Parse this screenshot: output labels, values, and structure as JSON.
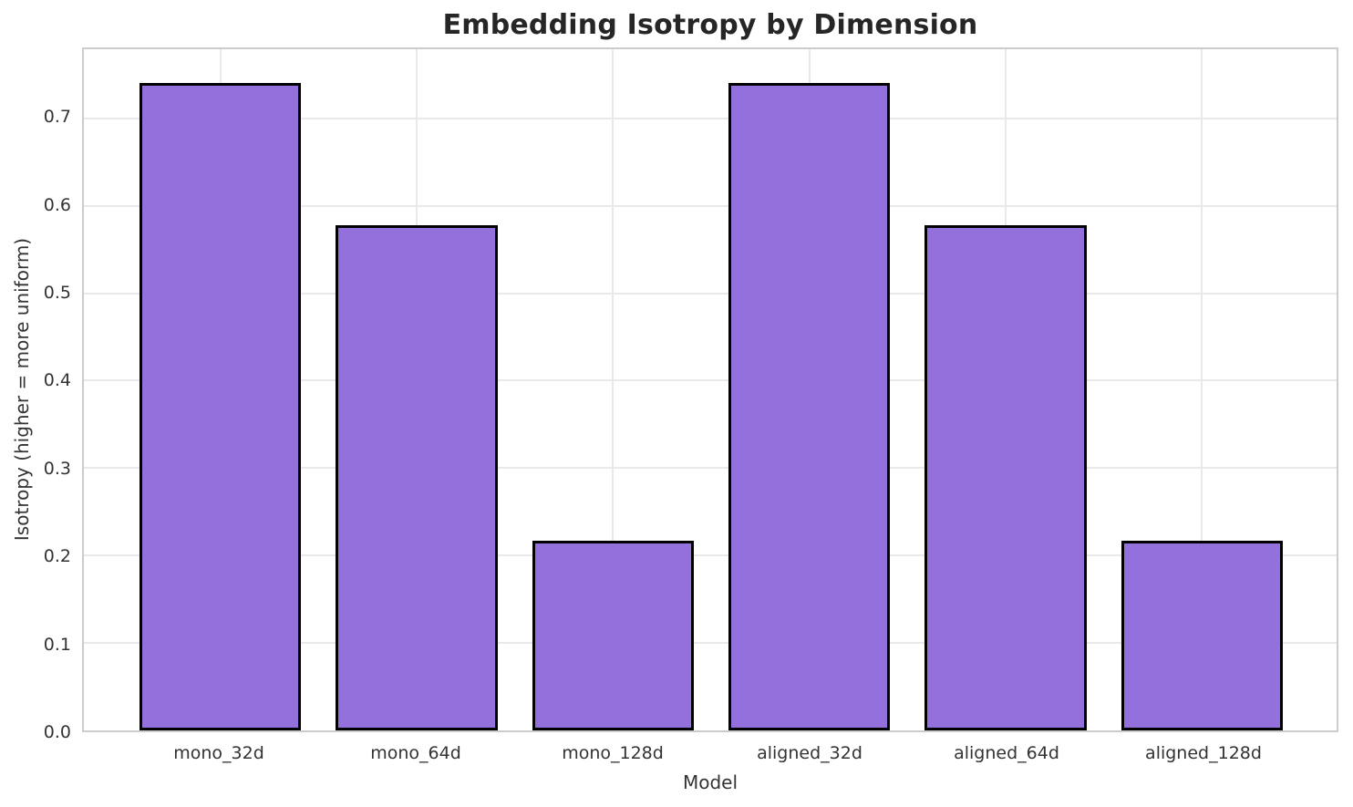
{
  "chart_data": {
    "type": "bar",
    "title": "Embedding Isotropy by Dimension",
    "xlabel": "Model",
    "ylabel": "Isotropy (higher = more uniform)",
    "categories": [
      "mono_32d",
      "mono_64d",
      "mono_128d",
      "aligned_32d",
      "aligned_64d",
      "aligned_128d"
    ],
    "values": [
      0.74,
      0.578,
      0.217,
      0.74,
      0.578,
      0.217
    ],
    "ylim": [
      0,
      0.779
    ],
    "yticks": [
      0.0,
      0.1,
      0.2,
      0.3,
      0.4,
      0.5,
      0.6,
      0.7
    ],
    "ytick_labels": [
      "0.0",
      "0.1",
      "0.2",
      "0.3",
      "0.4",
      "0.5",
      "0.6",
      "0.7"
    ],
    "grid": true,
    "legend": false,
    "bar_fill_color": "#9370DB",
    "bar_edge_color": "#000000",
    "grid_color": "#e9e9e9",
    "spine_color": "#cccccc",
    "title_color": "#262626",
    "tick_color": "#333333"
  }
}
